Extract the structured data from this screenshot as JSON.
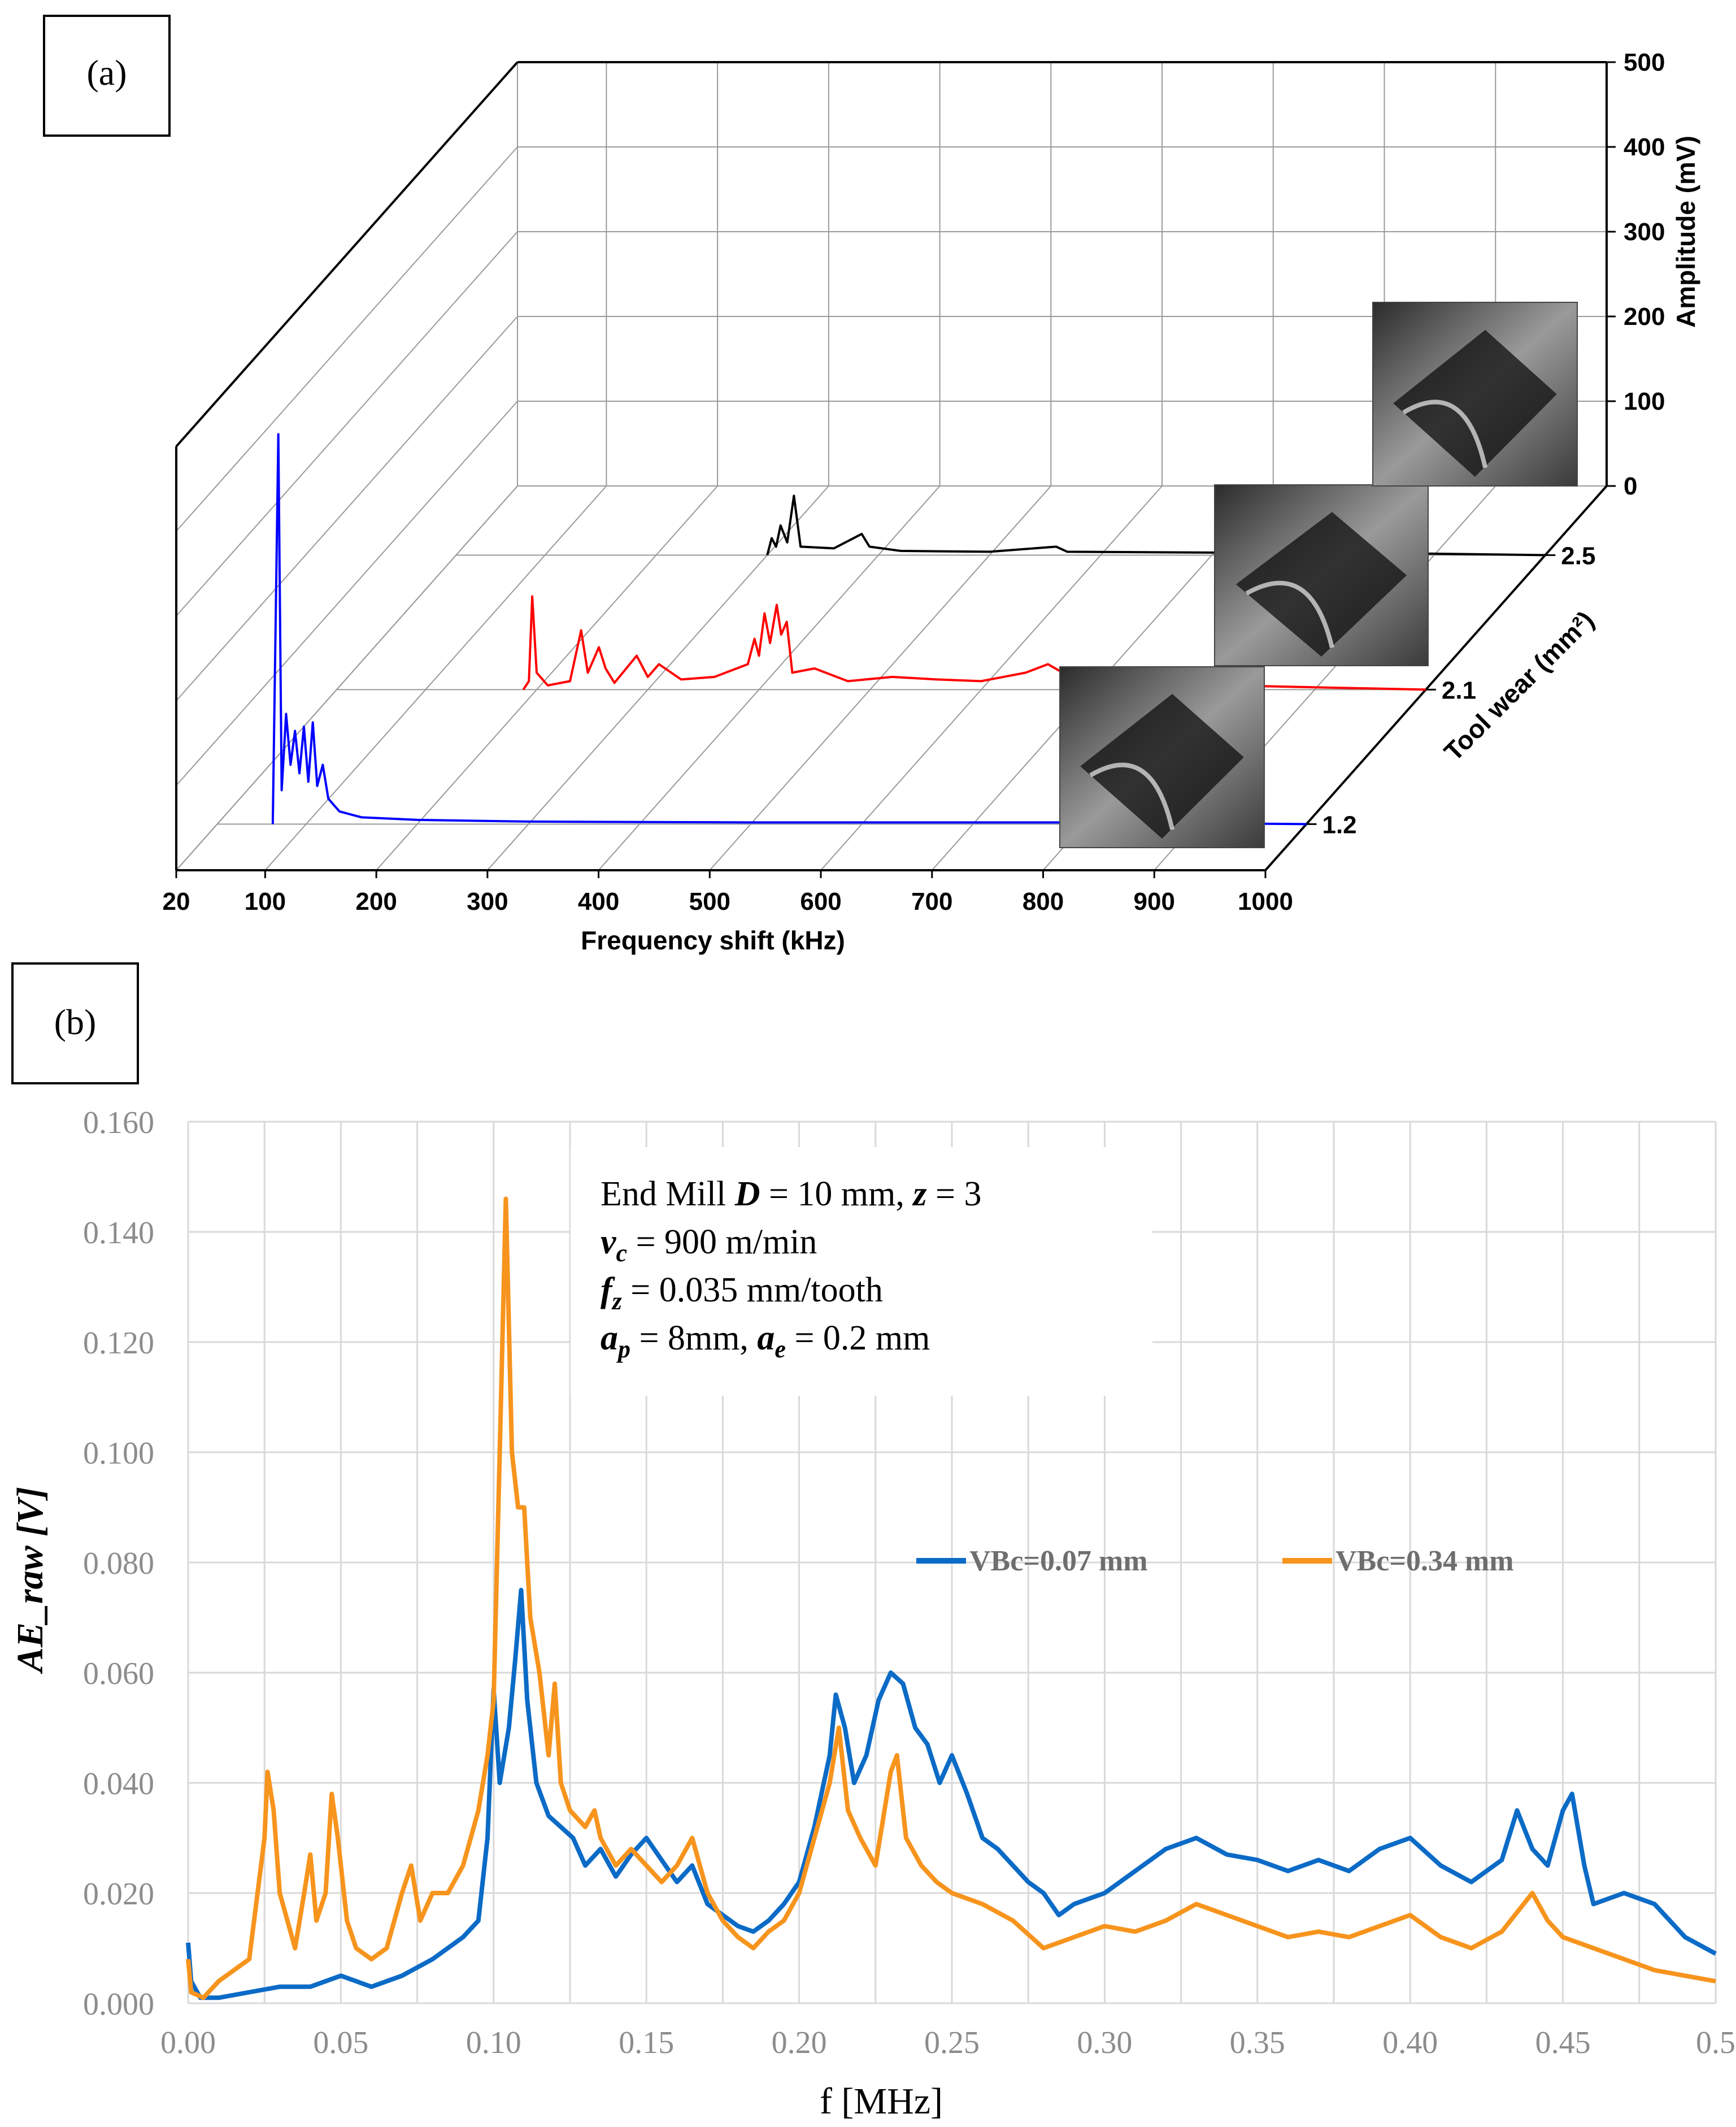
{
  "chart_data": [
    {
      "panel_label": "(a)",
      "type": "line",
      "title": "",
      "xlabel": "Frequency shift (kHz)",
      "ylabel": "Amplitude (mV)",
      "zlabel": "Tool wear (mm²)",
      "xlim": [
        20,
        1000
      ],
      "ylim": [
        0,
        500
      ],
      "x_ticks": [
        "20",
        "100",
        "200",
        "300",
        "400",
        "500",
        "600",
        "700",
        "800",
        "900",
        "1000"
      ],
      "y_ticks": [
        "0",
        "100",
        "200",
        "300",
        "400",
        "500"
      ],
      "z_ticks": [
        "1.2",
        "2.1",
        "2.5"
      ],
      "series": [
        {
          "name": "1.2",
          "color": "#0000ff",
          "points": [
            [
              70,
              0
            ],
            [
              75,
              460
            ],
            [
              78,
              40
            ],
            [
              82,
              130
            ],
            [
              86,
              70
            ],
            [
              90,
              110
            ],
            [
              94,
              60
            ],
            [
              98,
              115
            ],
            [
              102,
              50
            ],
            [
              106,
              120
            ],
            [
              110,
              45
            ],
            [
              115,
              70
            ],
            [
              120,
              30
            ],
            [
              130,
              15
            ],
            [
              150,
              8
            ],
            [
              200,
              5
            ],
            [
              300,
              3
            ],
            [
              500,
              2
            ],
            [
              700,
              2
            ],
            [
              820,
              2
            ]
          ]
        },
        {
          "name": "2.1",
          "color": "#ff0000",
          "points": [
            [
              188,
              0
            ],
            [
              193,
              10
            ],
            [
              196,
              110
            ],
            [
              200,
              20
            ],
            [
              210,
              5
            ],
            [
              230,
              10
            ],
            [
              240,
              70
            ],
            [
              246,
              20
            ],
            [
              256,
              50
            ],
            [
              262,
              25
            ],
            [
              270,
              8
            ],
            [
              290,
              40
            ],
            [
              300,
              15
            ],
            [
              310,
              30
            ],
            [
              330,
              12
            ],
            [
              360,
              15
            ],
            [
              390,
              30
            ],
            [
              396,
              60
            ],
            [
              400,
              40
            ],
            [
              405,
              90
            ],
            [
              410,
              55
            ],
            [
              416,
              100
            ],
            [
              420,
              65
            ],
            [
              425,
              80
            ],
            [
              430,
              20
            ],
            [
              450,
              25
            ],
            [
              480,
              10
            ],
            [
              520,
              15
            ],
            [
              560,
              12
            ],
            [
              600,
              10
            ],
            [
              640,
              20
            ],
            [
              660,
              30
            ],
            [
              680,
              15
            ],
            [
              700,
              20
            ],
            [
              740,
              8
            ],
            [
              780,
              5
            ],
            [
              820,
              5
            ]
          ]
        },
        {
          "name": "2.5",
          "color": "#000000",
          "points": [
            [
              300,
              0
            ],
            [
              304,
              20
            ],
            [
              308,
              10
            ],
            [
              312,
              35
            ],
            [
              318,
              15
            ],
            [
              324,
              70
            ],
            [
              330,
              10
            ],
            [
              360,
              8
            ],
            [
              385,
              25
            ],
            [
              392,
              10
            ],
            [
              420,
              5
            ],
            [
              500,
              4
            ],
            [
              560,
              10
            ],
            [
              570,
              4
            ],
            [
              700,
              3
            ],
            [
              820,
              3
            ]
          ]
        }
      ],
      "photos": [
        {
          "label": "tool wear image 1.2 mm²"
        },
        {
          "label": "tool wear image 2.1 mm²"
        },
        {
          "label": "tool wear image 2.5 mm²"
        }
      ]
    },
    {
      "panel_label": "(b)",
      "type": "line",
      "title": "",
      "xlabel": "f [MHz]",
      "ylabel": "AE_raw [V]",
      "xlim": [
        0,
        0.5
      ],
      "ylim": [
        0,
        0.16
      ],
      "x_ticks": [
        "0.00",
        "0.05",
        "0.10",
        "0.15",
        "0.20",
        "0.25",
        "0.30",
        "0.35",
        "0.40",
        "0.45",
        "0.5"
      ],
      "y_ticks": [
        "0.000",
        "0.020",
        "0.040",
        "0.060",
        "0.080",
        "0.100",
        "0.120",
        "0.140",
        "0.160"
      ],
      "grid": true,
      "legend_position": "right",
      "annotation_lines": [
        {
          "t1": "End Mill ",
          "b1": "D",
          "t2": " = 10 mm, ",
          "b2": "z",
          "t3": " = 3"
        },
        {
          "v": "v",
          "vs": "c",
          "t": " = 900 m/min"
        },
        {
          "v": "f",
          "vs": "z",
          "t": " = 0.035 mm/tooth"
        },
        {
          "v1": "a",
          "s1": "p",
          "t1": " = 8mm,  ",
          "v2": "a",
          "s2": "e",
          "t2": " = 0.2 mm"
        }
      ],
      "series": [
        {
          "name": "VBc=0.07 mm",
          "color": "#0b6bc6",
          "points": [
            [
              0,
              0.011
            ],
            [
              0.001,
              0.004
            ],
            [
              0.004,
              0.001
            ],
            [
              0.01,
              0.001
            ],
            [
              0.02,
              0.002
            ],
            [
              0.03,
              0.003
            ],
            [
              0.04,
              0.003
            ],
            [
              0.05,
              0.005
            ],
            [
              0.06,
              0.003
            ],
            [
              0.07,
              0.005
            ],
            [
              0.08,
              0.008
            ],
            [
              0.09,
              0.012
            ],
            [
              0.095,
              0.015
            ],
            [
              0.098,
              0.03
            ],
            [
              0.1,
              0.057
            ],
            [
              0.102,
              0.04
            ],
            [
              0.105,
              0.05
            ],
            [
              0.107,
              0.062
            ],
            [
              0.109,
              0.075
            ],
            [
              0.111,
              0.055
            ],
            [
              0.114,
              0.04
            ],
            [
              0.118,
              0.034
            ],
            [
              0.122,
              0.032
            ],
            [
              0.126,
              0.03
            ],
            [
              0.13,
              0.025
            ],
            [
              0.135,
              0.028
            ],
            [
              0.14,
              0.023
            ],
            [
              0.145,
              0.027
            ],
            [
              0.15,
              0.03
            ],
            [
              0.155,
              0.026
            ],
            [
              0.16,
              0.022
            ],
            [
              0.165,
              0.025
            ],
            [
              0.17,
              0.018
            ],
            [
              0.175,
              0.016
            ],
            [
              0.18,
              0.014
            ],
            [
              0.185,
              0.013
            ],
            [
              0.19,
              0.015
            ],
            [
              0.195,
              0.018
            ],
            [
              0.2,
              0.022
            ],
            [
              0.205,
              0.032
            ],
            [
              0.21,
              0.045
            ],
            [
              0.212,
              0.056
            ],
            [
              0.215,
              0.05
            ],
            [
              0.218,
              0.04
            ],
            [
              0.222,
              0.045
            ],
            [
              0.226,
              0.055
            ],
            [
              0.23,
              0.06
            ],
            [
              0.234,
              0.058
            ],
            [
              0.238,
              0.05
            ],
            [
              0.242,
              0.047
            ],
            [
              0.246,
              0.04
            ],
            [
              0.25,
              0.045
            ],
            [
              0.255,
              0.038
            ],
            [
              0.26,
              0.03
            ],
            [
              0.265,
              0.028
            ],
            [
              0.27,
              0.025
            ],
            [
              0.275,
              0.022
            ],
            [
              0.28,
              0.02
            ],
            [
              0.285,
              0.016
            ],
            [
              0.29,
              0.018
            ],
            [
              0.3,
              0.02
            ],
            [
              0.31,
              0.024
            ],
            [
              0.32,
              0.028
            ],
            [
              0.33,
              0.03
            ],
            [
              0.34,
              0.027
            ],
            [
              0.35,
              0.026
            ],
            [
              0.36,
              0.024
            ],
            [
              0.37,
              0.026
            ],
            [
              0.38,
              0.024
            ],
            [
              0.39,
              0.028
            ],
            [
              0.4,
              0.03
            ],
            [
              0.41,
              0.025
            ],
            [
              0.42,
              0.022
            ],
            [
              0.43,
              0.026
            ],
            [
              0.435,
              0.035
            ],
            [
              0.44,
              0.028
            ],
            [
              0.445,
              0.025
            ],
            [
              0.45,
              0.035
            ],
            [
              0.453,
              0.038
            ],
            [
              0.457,
              0.025
            ],
            [
              0.46,
              0.018
            ],
            [
              0.47,
              0.02
            ],
            [
              0.48,
              0.018
            ],
            [
              0.49,
              0.012
            ],
            [
              0.5,
              0.009
            ]
          ]
        },
        {
          "name": "VBc=0.34 mm",
          "color": "#f7941d",
          "points": [
            [
              0,
              0.008
            ],
            [
              0.001,
              0.002
            ],
            [
              0.005,
              0.001
            ],
            [
              0.01,
              0.004
            ],
            [
              0.015,
              0.006
            ],
            [
              0.02,
              0.008
            ],
            [
              0.025,
              0.03
            ],
            [
              0.026,
              0.042
            ],
            [
              0.028,
              0.035
            ],
            [
              0.03,
              0.02
            ],
            [
              0.035,
              0.01
            ],
            [
              0.038,
              0.02
            ],
            [
              0.04,
              0.027
            ],
            [
              0.042,
              0.015
            ],
            [
              0.045,
              0.02
            ],
            [
              0.047,
              0.038
            ],
            [
              0.049,
              0.03
            ],
            [
              0.052,
              0.015
            ],
            [
              0.055,
              0.01
            ],
            [
              0.06,
              0.008
            ],
            [
              0.065,
              0.01
            ],
            [
              0.07,
              0.02
            ],
            [
              0.073,
              0.025
            ],
            [
              0.076,
              0.015
            ],
            [
              0.08,
              0.02
            ],
            [
              0.085,
              0.02
            ],
            [
              0.09,
              0.025
            ],
            [
              0.095,
              0.035
            ],
            [
              0.098,
              0.045
            ],
            [
              0.1,
              0.055
            ],
            [
              0.102,
              0.1
            ],
            [
              0.104,
              0.146
            ],
            [
              0.106,
              0.1
            ],
            [
              0.108,
              0.09
            ],
            [
              0.11,
              0.09
            ],
            [
              0.112,
              0.07
            ],
            [
              0.115,
              0.06
            ],
            [
              0.118,
              0.045
            ],
            [
              0.12,
              0.058
            ],
            [
              0.122,
              0.04
            ],
            [
              0.125,
              0.035
            ],
            [
              0.13,
              0.032
            ],
            [
              0.133,
              0.035
            ],
            [
              0.135,
              0.03
            ],
            [
              0.14,
              0.025
            ],
            [
              0.145,
              0.028
            ],
            [
              0.15,
              0.025
            ],
            [
              0.155,
              0.022
            ],
            [
              0.16,
              0.025
            ],
            [
              0.165,
              0.03
            ],
            [
              0.17,
              0.02
            ],
            [
              0.175,
              0.015
            ],
            [
              0.18,
              0.012
            ],
            [
              0.185,
              0.01
            ],
            [
              0.19,
              0.013
            ],
            [
              0.195,
              0.015
            ],
            [
              0.2,
              0.02
            ],
            [
              0.205,
              0.03
            ],
            [
              0.21,
              0.04
            ],
            [
              0.213,
              0.05
            ],
            [
              0.216,
              0.035
            ],
            [
              0.22,
              0.03
            ],
            [
              0.225,
              0.025
            ],
            [
              0.23,
              0.042
            ],
            [
              0.232,
              0.045
            ],
            [
              0.235,
              0.03
            ],
            [
              0.24,
              0.025
            ],
            [
              0.245,
              0.022
            ],
            [
              0.25,
              0.02
            ],
            [
              0.26,
              0.018
            ],
            [
              0.27,
              0.015
            ],
            [
              0.28,
              0.01
            ],
            [
              0.29,
              0.012
            ],
            [
              0.3,
              0.014
            ],
            [
              0.31,
              0.013
            ],
            [
              0.32,
              0.015
            ],
            [
              0.33,
              0.018
            ],
            [
              0.34,
              0.016
            ],
            [
              0.35,
              0.014
            ],
            [
              0.36,
              0.012
            ],
            [
              0.37,
              0.013
            ],
            [
              0.38,
              0.012
            ],
            [
              0.39,
              0.014
            ],
            [
              0.4,
              0.016
            ],
            [
              0.41,
              0.012
            ],
            [
              0.42,
              0.01
            ],
            [
              0.43,
              0.013
            ],
            [
              0.44,
              0.02
            ],
            [
              0.445,
              0.015
            ],
            [
              0.45,
              0.012
            ],
            [
              0.46,
              0.01
            ],
            [
              0.47,
              0.008
            ],
            [
              0.48,
              0.006
            ],
            [
              0.49,
              0.005
            ],
            [
              0.5,
              0.004
            ]
          ]
        }
      ]
    }
  ]
}
